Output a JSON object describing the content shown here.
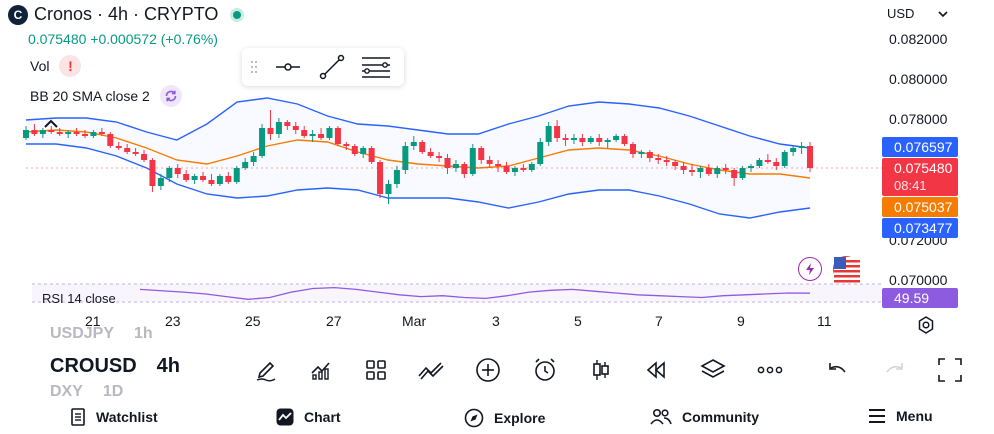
{
  "header": {
    "logo_letter": "C",
    "title": "Cronos · 4h · CRYPTO",
    "price_change": "0.075480 +0.000572 (+0.76%)"
  },
  "indicators": {
    "vol_label": "Vol",
    "bb_label": "BB 20 SMA close 2",
    "rsi_label": "RSI 14 close"
  },
  "currency": {
    "label": "USD"
  },
  "price_axis": {
    "ticks": [
      "0.082000",
      "0.080000",
      "0.078000",
      "0.072000",
      "0.070000"
    ]
  },
  "price_tags": {
    "bb_upper": "0.076597",
    "last_price": "0.075480",
    "countdown": "08:41",
    "bb_basis": "0.075037",
    "bb_lower": "0.073477",
    "rsi": "49.59"
  },
  "time_axis": {
    "ticks": [
      "21",
      "23",
      "25",
      "27",
      "Mar",
      "3",
      "5",
      "7",
      "9",
      "11"
    ]
  },
  "watchlist_strip": {
    "rows": [
      {
        "symbol": "USDJPY",
        "interval": "1h"
      },
      {
        "symbol": "CROUSD",
        "interval": "4h"
      },
      {
        "symbol": "DXY",
        "interval": "1D"
      }
    ]
  },
  "toolbar_icons": [
    "brush-icon",
    "indicators-icon",
    "layout-grid-icon",
    "drawings-icon",
    "add-icon",
    "alert-clock-icon",
    "candles-icon",
    "replay-icon",
    "layers-icon",
    "more-icon",
    "undo-icon",
    "redo-icon",
    "fullscreen-icon"
  ],
  "bottom_nav": {
    "watchlist": "Watchlist",
    "chart": "Chart",
    "explore": "Explore",
    "community": "Community",
    "menu": "Menu"
  },
  "colors": {
    "up": "#089981",
    "down": "#f23645",
    "bb_band": "#2962ff",
    "bb_basis": "#f57c00",
    "rsi": "#8d5be0"
  },
  "chart_data": {
    "type": "candlestick",
    "interval": "4h",
    "y_axis": {
      "min": 0.07,
      "max": 0.083
    },
    "candles": [
      [
        0.077,
        0.0776,
        0.0769,
        0.0774
      ],
      [
        0.0774,
        0.0777,
        0.0771,
        0.0772
      ],
      [
        0.0772,
        0.0775,
        0.077,
        0.0774
      ],
      [
        0.0774,
        0.0776,
        0.0772,
        0.0773
      ],
      [
        0.0773,
        0.0775,
        0.0771,
        0.0772
      ],
      [
        0.0772,
        0.0774,
        0.077,
        0.0773
      ],
      [
        0.0773,
        0.0775,
        0.0771,
        0.0772
      ],
      [
        0.0772,
        0.0774,
        0.077,
        0.0771
      ],
      [
        0.0771,
        0.0774,
        0.077,
        0.0773
      ],
      [
        0.0773,
        0.0775,
        0.0771,
        0.0772
      ],
      [
        0.0772,
        0.0773,
        0.0765,
        0.0766
      ],
      [
        0.0766,
        0.0768,
        0.0764,
        0.0765
      ],
      [
        0.0765,
        0.0767,
        0.0762,
        0.0763
      ],
      [
        0.0763,
        0.0765,
        0.0761,
        0.0762
      ],
      [
        0.0762,
        0.0764,
        0.0758,
        0.0759
      ],
      [
        0.0759,
        0.076,
        0.0743,
        0.0746
      ],
      [
        0.0746,
        0.0752,
        0.0744,
        0.075
      ],
      [
        0.075,
        0.0756,
        0.0748,
        0.0755
      ],
      [
        0.0755,
        0.0757,
        0.075,
        0.0752
      ],
      [
        0.0752,
        0.0754,
        0.0748,
        0.0749
      ],
      [
        0.0749,
        0.0752,
        0.0747,
        0.0751
      ],
      [
        0.0751,
        0.0753,
        0.0748,
        0.0749
      ],
      [
        0.0749,
        0.0752,
        0.0746,
        0.0747
      ],
      [
        0.0747,
        0.0752,
        0.0746,
        0.0751
      ],
      [
        0.0751,
        0.0753,
        0.0747,
        0.0748
      ],
      [
        0.0748,
        0.0756,
        0.0747,
        0.0755
      ],
      [
        0.0755,
        0.076,
        0.0754,
        0.0758
      ],
      [
        0.0758,
        0.0763,
        0.0756,
        0.0761
      ],
      [
        0.0761,
        0.0777,
        0.076,
        0.0775
      ],
      [
        0.0775,
        0.0784,
        0.0769,
        0.0772
      ],
      [
        0.0772,
        0.078,
        0.077,
        0.0778
      ],
      [
        0.0778,
        0.0779,
        0.0774,
        0.0776
      ],
      [
        0.0776,
        0.0778,
        0.0772,
        0.0774
      ],
      [
        0.0774,
        0.0776,
        0.077,
        0.0771
      ],
      [
        0.0771,
        0.0774,
        0.0768,
        0.0772
      ],
      [
        0.0772,
        0.0775,
        0.0769,
        0.077
      ],
      [
        0.077,
        0.0776,
        0.0769,
        0.0775
      ],
      [
        0.0775,
        0.0776,
        0.0766,
        0.0767
      ],
      [
        0.0767,
        0.0768,
        0.0764,
        0.0766
      ],
      [
        0.0766,
        0.0767,
        0.0761,
        0.0762
      ],
      [
        0.0762,
        0.0766,
        0.076,
        0.0765
      ],
      [
        0.0765,
        0.0766,
        0.0757,
        0.0758
      ],
      [
        0.0758,
        0.0759,
        0.074,
        0.0742
      ],
      [
        0.0742,
        0.0749,
        0.0737,
        0.0747
      ],
      [
        0.0747,
        0.0756,
        0.0745,
        0.0754
      ],
      [
        0.0754,
        0.0768,
        0.0752,
        0.0766
      ],
      [
        0.0766,
        0.0771,
        0.0764,
        0.0768
      ],
      [
        0.0768,
        0.0769,
        0.0762,
        0.0763
      ],
      [
        0.0763,
        0.0765,
        0.076,
        0.0761
      ],
      [
        0.0761,
        0.0763,
        0.0758,
        0.076
      ],
      [
        0.076,
        0.0762,
        0.0752,
        0.0755
      ],
      [
        0.0755,
        0.0759,
        0.0753,
        0.0757
      ],
      [
        0.0757,
        0.0758,
        0.075,
        0.0752
      ],
      [
        0.0752,
        0.0767,
        0.0751,
        0.0765
      ],
      [
        0.0765,
        0.0766,
        0.0757,
        0.0759
      ],
      [
        0.0759,
        0.0761,
        0.0755,
        0.0757
      ],
      [
        0.0757,
        0.0759,
        0.0753,
        0.0756
      ],
      [
        0.0756,
        0.0758,
        0.0752,
        0.0753
      ],
      [
        0.0753,
        0.0756,
        0.0751,
        0.0755
      ],
      [
        0.0755,
        0.0757,
        0.0753,
        0.0754
      ],
      [
        0.0754,
        0.0758,
        0.0753,
        0.0757
      ],
      [
        0.0757,
        0.077,
        0.0756,
        0.0768
      ],
      [
        0.0768,
        0.0778,
        0.0766,
        0.0776
      ],
      [
        0.0776,
        0.0779,
        0.0768,
        0.077
      ],
      [
        0.077,
        0.0772,
        0.0766,
        0.0769
      ],
      [
        0.0769,
        0.0772,
        0.0767,
        0.077
      ],
      [
        0.077,
        0.0772,
        0.0766,
        0.0768
      ],
      [
        0.0768,
        0.0771,
        0.0767,
        0.077
      ],
      [
        0.077,
        0.0772,
        0.0766,
        0.0768
      ],
      [
        0.0768,
        0.077,
        0.0765,
        0.0769
      ],
      [
        0.0769,
        0.0772,
        0.0768,
        0.0771
      ],
      [
        0.0771,
        0.0772,
        0.0766,
        0.0767
      ],
      [
        0.0767,
        0.0768,
        0.076,
        0.0762
      ],
      [
        0.0762,
        0.0764,
        0.076,
        0.0763
      ],
      [
        0.0763,
        0.0764,
        0.0758,
        0.076
      ],
      [
        0.076,
        0.0762,
        0.0757,
        0.0759
      ],
      [
        0.0759,
        0.0761,
        0.0756,
        0.0758
      ],
      [
        0.0758,
        0.0759,
        0.0754,
        0.0756
      ],
      [
        0.0756,
        0.0758,
        0.0752,
        0.0754
      ],
      [
        0.0754,
        0.0757,
        0.0751,
        0.0753
      ],
      [
        0.0753,
        0.0756,
        0.075,
        0.0755
      ],
      [
        0.0755,
        0.0757,
        0.0751,
        0.0752
      ],
      [
        0.0752,
        0.0756,
        0.075,
        0.0755
      ],
      [
        0.0755,
        0.0757,
        0.0752,
        0.0754
      ],
      [
        0.0754,
        0.0755,
        0.0746,
        0.075
      ],
      [
        0.075,
        0.0756,
        0.0749,
        0.0755
      ],
      [
        0.0755,
        0.0757,
        0.0753,
        0.0756
      ],
      [
        0.0756,
        0.076,
        0.0755,
        0.0759
      ],
      [
        0.0759,
        0.0762,
        0.0757,
        0.0758
      ],
      [
        0.0758,
        0.076,
        0.0754,
        0.0756
      ],
      [
        0.0756,
        0.0764,
        0.0755,
        0.0763
      ],
      [
        0.0763,
        0.0766,
        0.0761,
        0.0765
      ],
      [
        0.0765,
        0.0768,
        0.0762,
        0.0766
      ],
      [
        0.0766,
        0.0768,
        0.0753,
        0.0755
      ]
    ],
    "bb_upper": [
      0.0779,
      0.078,
      0.078,
      0.0778,
      0.0773,
      0.0769,
      0.0777,
      0.0788,
      0.079,
      0.0787,
      0.0781,
      0.0777,
      0.0776,
      0.0774,
      0.0772,
      0.0772,
      0.0777,
      0.0781,
      0.0786,
      0.0788,
      0.0787,
      0.0785,
      0.0781,
      0.0776,
      0.0771,
      0.0767,
      0.0765
    ],
    "bb_basis": [
      0.0773,
      0.0774,
      0.0773,
      0.077,
      0.0765,
      0.0759,
      0.0757,
      0.0761,
      0.0766,
      0.0769,
      0.0768,
      0.0763,
      0.0759,
      0.0757,
      0.0756,
      0.0755,
      0.0756,
      0.076,
      0.0764,
      0.0765,
      0.0764,
      0.0761,
      0.0757,
      0.0754,
      0.0752,
      0.0752,
      0.075
    ],
    "bb_lower": [
      0.0767,
      0.0767,
      0.0765,
      0.0761,
      0.0755,
      0.0747,
      0.0742,
      0.074,
      0.0741,
      0.0744,
      0.0745,
      0.0744,
      0.074,
      0.074,
      0.074,
      0.0738,
      0.0735,
      0.0738,
      0.0742,
      0.0744,
      0.0744,
      0.0741,
      0.0737,
      0.0732,
      0.073,
      0.0733,
      0.0735
    ],
    "rsi": [
      58,
      55,
      52,
      48,
      42,
      36,
      40,
      52,
      60,
      62,
      58,
      52,
      46,
      42,
      44,
      40,
      38,
      44,
      52,
      56,
      58,
      54,
      50,
      46,
      44,
      42,
      40,
      44,
      46,
      48,
      50,
      49.59
    ]
  }
}
